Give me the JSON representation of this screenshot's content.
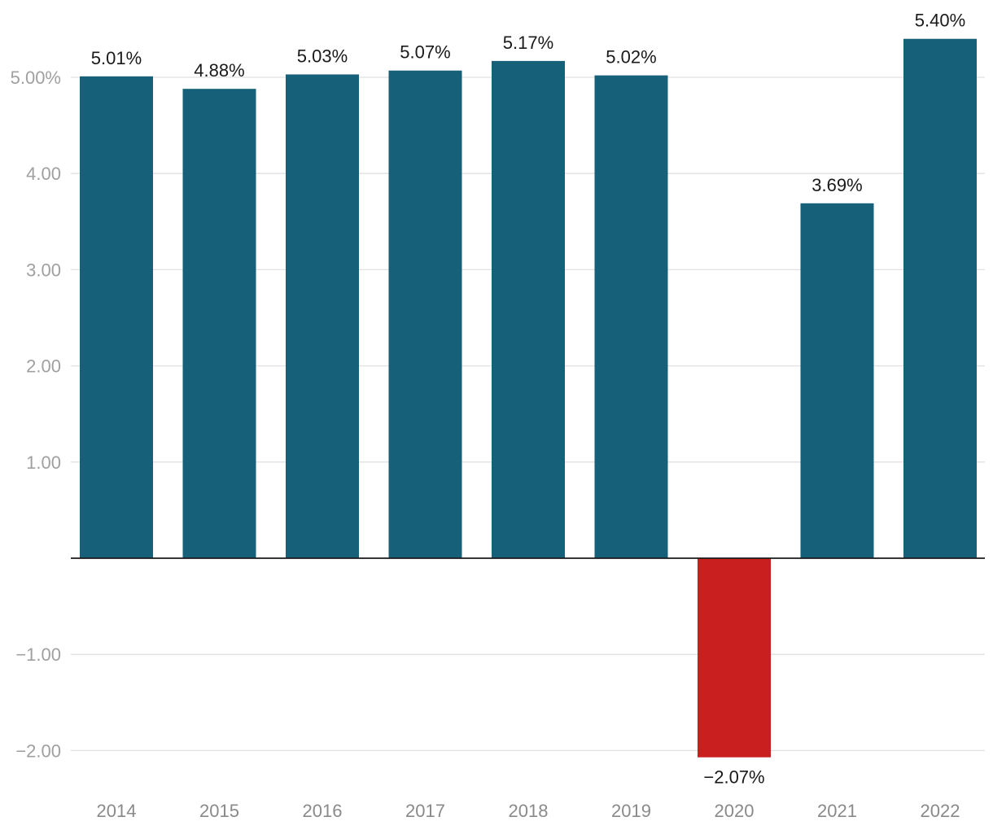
{
  "chart_data": {
    "type": "bar",
    "title": "",
    "xlabel": "",
    "ylabel": "",
    "categories": [
      "2014",
      "2015",
      "2016",
      "2017",
      "2018",
      "2019",
      "2020",
      "2021",
      "2022"
    ],
    "values": [
      5.01,
      4.88,
      5.03,
      5.07,
      5.17,
      5.02,
      -2.07,
      3.69,
      5.4
    ],
    "data_labels": [
      "5.01%",
      "4.88%",
      "5.03%",
      "5.07%",
      "5.17%",
      "5.02%",
      "−2.07%",
      "3.69%",
      "5.40%"
    ],
    "y_ticks": [
      -2,
      -1,
      1,
      2,
      3,
      4,
      5
    ],
    "y_tick_labels": [
      "−2.00",
      "−1.00",
      "1.00",
      "2.00",
      "3.00",
      "4.00",
      "5.00%"
    ],
    "ylim": [
      -2.3,
      5.75
    ],
    "grid": true,
    "legend": "none",
    "colors": {
      "positive": "#17607a",
      "negative": "#c91f1f"
    }
  }
}
